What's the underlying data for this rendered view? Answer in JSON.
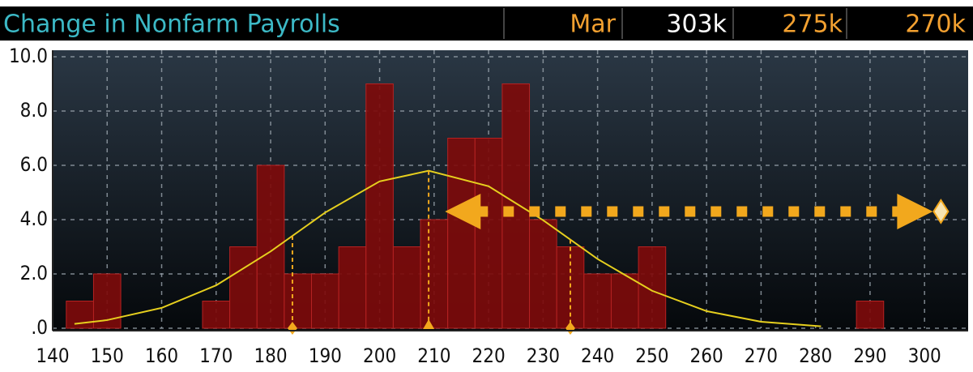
{
  "header": {
    "title": "Change in Nonfarm Payrolls",
    "cells": [
      "Mar",
      "303k",
      "275k",
      "270k"
    ]
  },
  "chart_data": {
    "type": "histogram",
    "bins": [
      142.5,
      147.5,
      152.5,
      157.5,
      162.5,
      167.5,
      172.5,
      177.5,
      182.5,
      187.5,
      192.5,
      197.5,
      202.5,
      207.5,
      212.5,
      217.5,
      222.5,
      227.5,
      232.5,
      237.5,
      242.5,
      247.5,
      252.5,
      257.5,
      262.5,
      267.5,
      272.5,
      277.5,
      282.5,
      287.5,
      292.5
    ],
    "values": [
      1,
      2,
      0,
      0,
      0,
      1,
      3,
      6,
      2,
      2,
      3,
      9,
      3,
      4,
      7,
      7,
      9,
      4,
      3,
      2,
      2,
      3,
      0,
      0,
      0,
      0,
      0,
      0,
      0,
      1
    ],
    "color": "#7d0b0b",
    "curve": {
      "color": "#e6cf1e",
      "x": [
        144,
        150,
        160,
        170,
        180,
        190,
        200,
        209,
        220,
        230,
        240,
        250,
        260,
        270,
        281
      ],
      "values": [
        0.16,
        0.3,
        0.75,
        1.58,
        2.83,
        4.26,
        5.41,
        5.8,
        5.23,
        3.98,
        2.55,
        1.38,
        0.63,
        0.24,
        0.07
      ]
    },
    "markers": [
      184,
      209,
      235
    ],
    "arrow": {
      "from": 212,
      "to": 303,
      "y": 4.3
    },
    "annotation_color": "#f2a81d",
    "xlim": [
      140,
      308
    ],
    "ylim": [
      0,
      10
    ],
    "xticks": [
      140,
      150,
      160,
      170,
      180,
      190,
      200,
      210,
      220,
      230,
      240,
      250,
      260,
      270,
      280,
      290,
      300
    ],
    "yticks": [
      {
        "value": 0,
        "label": ".0"
      },
      {
        "value": 2,
        "label": "2.0"
      },
      {
        "value": 4,
        "label": "4.0"
      },
      {
        "value": 6,
        "label": "6.0"
      },
      {
        "value": 8,
        "label": "8.0"
      },
      {
        "value": 10,
        "label": "10.0"
      }
    ],
    "grid": true
  }
}
